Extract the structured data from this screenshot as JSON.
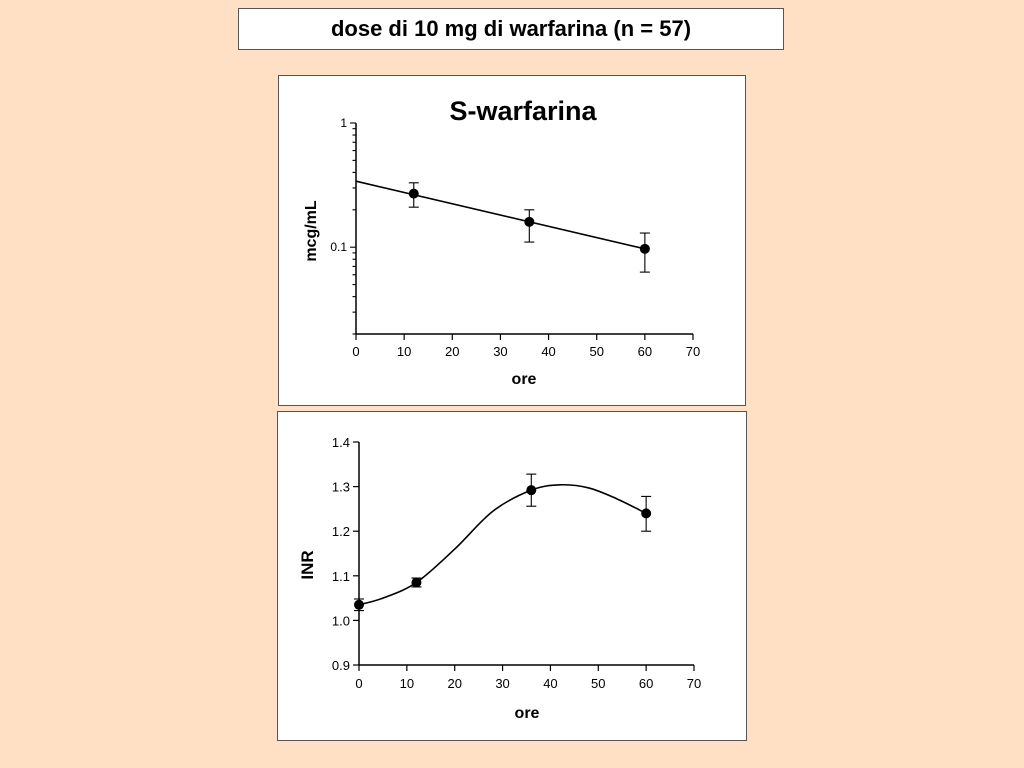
{
  "slide": {
    "title": "dose di 10 mg di warfarina (n = 57)"
  },
  "chart_data": [
    {
      "type": "scatter",
      "title": "S-warfarina",
      "xlabel": "ore",
      "ylabel": "mcg/mL",
      "xlim": [
        0,
        70
      ],
      "ylim": [
        0.02,
        1
      ],
      "y_scale": "log",
      "x_ticks": [
        "0",
        "10",
        "20",
        "30",
        "40",
        "50",
        "60",
        "70"
      ],
      "y_tick_labels": [
        "1",
        "0.1"
      ],
      "points": [
        {
          "x": 12,
          "y": 0.27,
          "err_low": 0.21,
          "err_high": 0.33
        },
        {
          "x": 36,
          "y": 0.16,
          "err_low": 0.11,
          "err_high": 0.2
        },
        {
          "x": 60,
          "y": 0.097,
          "err_low": 0.063,
          "err_high": 0.13
        }
      ],
      "fit_line": {
        "type": "linear-log",
        "x": [
          0,
          60
        ],
        "y": [
          0.34,
          0.097
        ]
      },
      "grid": false,
      "legend": "none"
    },
    {
      "type": "scatter",
      "title": "",
      "xlabel": "ore",
      "ylabel": "INR",
      "xlim": [
        0,
        70
      ],
      "ylim": [
        0.9,
        1.4
      ],
      "x_ticks": [
        "0",
        "10",
        "20",
        "30",
        "40",
        "50",
        "60",
        "70"
      ],
      "y_ticks": [
        "0.9",
        "1.0",
        "1.1",
        "1.2",
        "1.3",
        "1.4"
      ],
      "points": [
        {
          "x": 0,
          "y": 1.035,
          "err_low": 1.022,
          "err_high": 1.048
        },
        {
          "x": 12,
          "y": 1.085,
          "err_low": 1.075,
          "err_high": 1.095
        },
        {
          "x": 36,
          "y": 1.292,
          "err_low": 1.256,
          "err_high": 1.328
        },
        {
          "x": 60,
          "y": 1.24,
          "err_low": 1.2,
          "err_high": 1.278
        }
      ],
      "curve": {
        "type": "smooth",
        "x": [
          0,
          5,
          12,
          20,
          28,
          36,
          42,
          48,
          54,
          60
        ],
        "y": [
          1.035,
          1.05,
          1.085,
          1.16,
          1.245,
          1.292,
          1.304,
          1.297,
          1.272,
          1.24
        ]
      },
      "grid": false,
      "legend": "none"
    }
  ]
}
